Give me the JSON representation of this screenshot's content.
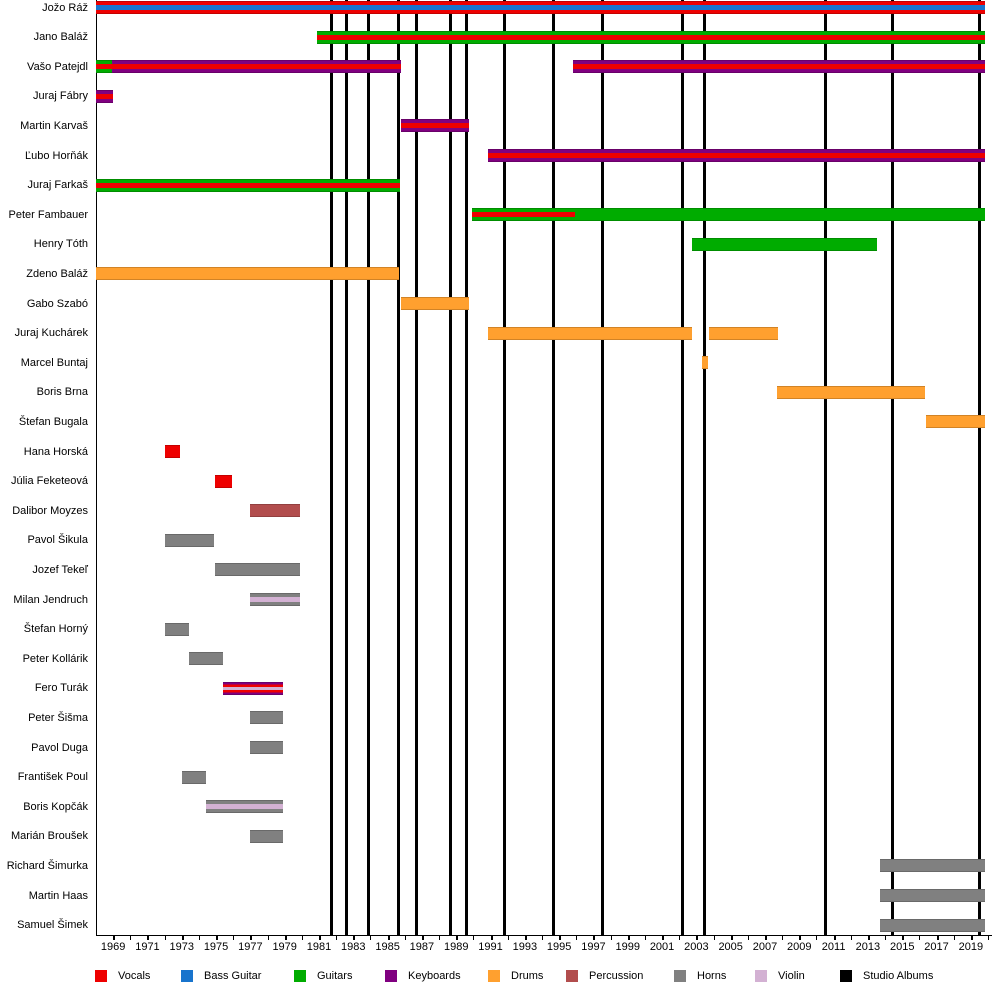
{
  "chart_data": {
    "type": "bar",
    "subtype": "band-member-timeline-gantt",
    "x_axis": {
      "min": 1968,
      "max": 2020,
      "tick_years": [
        1969,
        1971,
        1973,
        1975,
        1977,
        1979,
        1981,
        1983,
        1985,
        1987,
        1989,
        1991,
        1993,
        1995,
        1997,
        1999,
        2001,
        2003,
        2005,
        2007,
        2009,
        2011,
        2013,
        2015,
        2017,
        2019
      ],
      "minor_tick_step": 1,
      "grid": false
    },
    "album_lines_years": [
      1981.7,
      1982.6,
      1983.9,
      1985.65,
      1986.7,
      1988.65,
      1989.6,
      1991.8,
      1994.65,
      1997.5,
      2002.2,
      2003.5,
      2010.55,
      2014.45,
      2019.5
    ],
    "members": [
      {
        "name": "Jožo Ráž",
        "segments": [
          {
            "start": 1968,
            "end": 2019.85,
            "pattern": "vocals_bass"
          }
        ]
      },
      {
        "name": "Jano Baláž",
        "segments": [
          {
            "start": 1980.9,
            "end": 2019.85,
            "pattern": "guitars_vocals"
          }
        ]
      },
      {
        "name": "Vašo Patejdl",
        "segments": [
          {
            "start": 1968,
            "end": 1968.95,
            "pattern": "guitars_vocals"
          },
          {
            "start": 1968.95,
            "end": 1985.8,
            "pattern": "keys_vocals"
          },
          {
            "start": 1995.8,
            "end": 2019.85,
            "pattern": "keys_vocals"
          }
        ]
      },
      {
        "name": "Juraj Fábry",
        "segments": [
          {
            "start": 1968,
            "end": 1969.0,
            "pattern": "keys_vocals"
          }
        ]
      },
      {
        "name": "Martin Karvaš",
        "segments": [
          {
            "start": 1985.8,
            "end": 1989.75,
            "pattern": "keys_vocals"
          }
        ]
      },
      {
        "name": "Ľubo Horňák",
        "segments": [
          {
            "start": 1990.85,
            "end": 2019.85,
            "pattern": "keys_vocals"
          }
        ]
      },
      {
        "name": "Juraj Farkaš",
        "segments": [
          {
            "start": 1968,
            "end": 1985.75,
            "pattern": "guitars_vocals"
          }
        ]
      },
      {
        "name": "Peter Fambauer",
        "segments": [
          {
            "start": 1989.9,
            "end": 1995.9,
            "pattern": "guitars_vocals"
          },
          {
            "start": 1995.9,
            "end": 2019.85,
            "pattern": "guitars_solid"
          }
        ]
      },
      {
        "name": "Henry Tóth",
        "segments": [
          {
            "start": 2002.75,
            "end": 2013.55,
            "pattern": "guitars_solid"
          }
        ]
      },
      {
        "name": "Zdeno Baláž",
        "segments": [
          {
            "start": 1968,
            "end": 1985.65,
            "pattern": "drums_solid"
          }
        ]
      },
      {
        "name": "Gabo Szabó",
        "segments": [
          {
            "start": 1985.8,
            "end": 1989.75,
            "pattern": "drums_solid"
          }
        ]
      },
      {
        "name": "Juraj Kuchárek",
        "segments": [
          {
            "start": 1990.85,
            "end": 2002.75,
            "pattern": "drums_solid"
          },
          {
            "start": 2003.75,
            "end": 2007.75,
            "pattern": "drums_solid"
          }
        ]
      },
      {
        "name": "Marcel Buntaj",
        "segments": [
          {
            "start": 2003.35,
            "end": 2003.7,
            "pattern": "drums_solid"
          }
        ]
      },
      {
        "name": "Boris Brna",
        "segments": [
          {
            "start": 2007.7,
            "end": 2016.35,
            "pattern": "drums_solid"
          }
        ]
      },
      {
        "name": "Štefan Bugala",
        "segments": [
          {
            "start": 2016.4,
            "end": 2019.8,
            "pattern": "drums_solid"
          }
        ]
      },
      {
        "name": "Hana Horská",
        "segments": [
          {
            "start": 1972.0,
            "end": 1972.9,
            "pattern": "vocals_solid"
          }
        ]
      },
      {
        "name": "Júlia Feketeová",
        "segments": [
          {
            "start": 1974.95,
            "end": 1975.9,
            "pattern": "vocals_solid"
          }
        ]
      },
      {
        "name": "Dalibor Moyzes",
        "segments": [
          {
            "start": 1976.95,
            "end": 1979.9,
            "pattern": "percussion_solid"
          }
        ]
      },
      {
        "name": "Pavol Šikula",
        "segments": [
          {
            "start": 1972.0,
            "end": 1974.9,
            "pattern": "horns_solid"
          }
        ]
      },
      {
        "name": "Jozef Tekeľ",
        "segments": [
          {
            "start": 1974.95,
            "end": 1979.9,
            "pattern": "horns_solid"
          }
        ]
      },
      {
        "name": "Milan Jendruch",
        "segments": [
          {
            "start": 1976.95,
            "end": 1979.9,
            "pattern": "horns_violin"
          }
        ]
      },
      {
        "name": "Štefan Horný",
        "segments": [
          {
            "start": 1972.0,
            "end": 1973.45,
            "pattern": "horns_solid"
          }
        ]
      },
      {
        "name": "Peter Kollárik",
        "segments": [
          {
            "start": 1973.45,
            "end": 1975.4,
            "pattern": "horns_solid"
          }
        ]
      },
      {
        "name": "Fero Turák",
        "segments": [
          {
            "start": 1975.4,
            "end": 1978.9,
            "pattern": "keys_vocals_violin"
          }
        ]
      },
      {
        "name": "Peter Šišma",
        "segments": [
          {
            "start": 1976.95,
            "end": 1978.9,
            "pattern": "horns_solid"
          }
        ]
      },
      {
        "name": "Pavol Duga",
        "segments": [
          {
            "start": 1976.95,
            "end": 1978.9,
            "pattern": "horns_solid"
          }
        ]
      },
      {
        "name": "František Poul",
        "segments": [
          {
            "start": 1973.0,
            "end": 1974.4,
            "pattern": "horns_solid"
          }
        ]
      },
      {
        "name": "Boris Kopčák",
        "segments": [
          {
            "start": 1974.4,
            "end": 1978.9,
            "pattern": "horns_violin"
          }
        ]
      },
      {
        "name": "Marián Broušek",
        "segments": [
          {
            "start": 1976.95,
            "end": 1978.9,
            "pattern": "horns_solid"
          }
        ]
      },
      {
        "name": "Richard Šimurka",
        "segments": [
          {
            "start": 2013.7,
            "end": 2019.85,
            "pattern": "horns_solid"
          }
        ]
      },
      {
        "name": "Martin Haas",
        "segments": [
          {
            "start": 2013.7,
            "end": 2019.85,
            "pattern": "horns_solid"
          }
        ]
      },
      {
        "name": "Samuel Šimek",
        "segments": [
          {
            "start": 2013.7,
            "end": 2019.85,
            "pattern": "horns_solid"
          }
        ]
      }
    ],
    "legend": [
      {
        "label": "Vocals",
        "color_key": "vocals"
      },
      {
        "label": "Bass Guitar",
        "color_key": "bass"
      },
      {
        "label": "Guitars",
        "color_key": "guitars"
      },
      {
        "label": "Keyboards",
        "color_key": "keyboards"
      },
      {
        "label": "Drums",
        "color_key": "drums"
      },
      {
        "label": "Percussion",
        "color_key": "percussion"
      },
      {
        "label": "Horns",
        "color_key": "horns"
      },
      {
        "label": "Violin",
        "color_key": "violin"
      },
      {
        "label": "Studio Albums",
        "color_key": "album"
      }
    ]
  },
  "colors": {
    "vocals": "#ee0000",
    "bass": "#1874cd",
    "guitars": "#00ac00",
    "keyboards": "#800080",
    "drums": "#ffa02f",
    "percussion": "#b24d4d",
    "horns": "#808080",
    "violin": "#d3b1d3",
    "album": "#000000"
  },
  "patterns": {
    "vocals_bass": {
      "stripes": [
        "vocals",
        "bass",
        "vocals"
      ],
      "weights": [
        31,
        38,
        31
      ]
    },
    "guitars_vocals": {
      "stripes": [
        "guitars",
        "vocals",
        "guitars"
      ],
      "weights": [
        31,
        38,
        31
      ]
    },
    "keys_vocals": {
      "stripes": [
        "keyboards",
        "vocals",
        "keyboards"
      ],
      "weights": [
        31,
        38,
        31
      ]
    },
    "guitars_solid": {
      "stripes": [
        "guitars"
      ],
      "weights": [
        100
      ]
    },
    "drums_solid": {
      "stripes": [
        "drums"
      ],
      "weights": [
        100
      ]
    },
    "vocals_solid": {
      "stripes": [
        "vocals"
      ],
      "weights": [
        100
      ]
    },
    "percussion_solid": {
      "stripes": [
        "percussion"
      ],
      "weights": [
        100
      ]
    },
    "horns_solid": {
      "stripes": [
        "horns"
      ],
      "weights": [
        100
      ]
    },
    "horns_violin": {
      "stripes": [
        "horns",
        "violin",
        "horns"
      ],
      "weights": [
        31,
        38,
        31
      ]
    },
    "keys_vocals_violin": {
      "stripes": [
        "keyboards",
        "vocals",
        "violin",
        "vocals",
        "keyboards"
      ],
      "weights": [
        21,
        19,
        20,
        19,
        21
      ]
    }
  }
}
